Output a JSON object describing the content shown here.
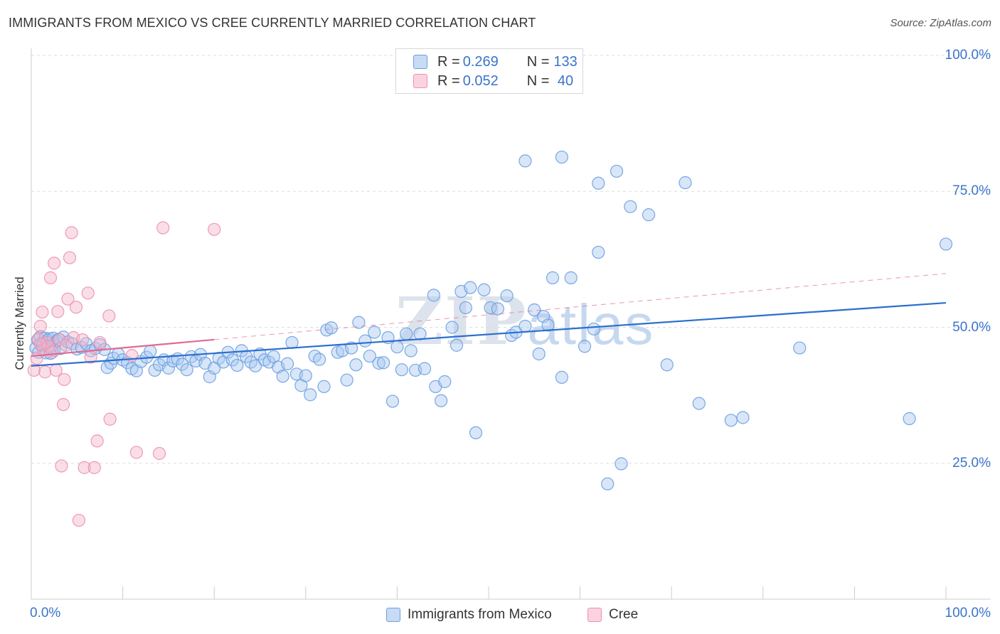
{
  "header": {
    "title": "IMMIGRANTS FROM MEXICO VS CREE CURRENTLY MARRIED CORRELATION CHART",
    "source": "Source: ZipAtlas.com"
  },
  "watermark": {
    "zip": "ZIP",
    "atlas": "atlas"
  },
  "legend_top": {
    "rows": [
      {
        "r_label": "R = ",
        "r_value": "0.269",
        "n_label": "N = ",
        "n_value": "133",
        "color": "#a9c8f0"
      },
      {
        "r_label": "R = ",
        "r_value": "0.052",
        "n_label": "N = ",
        "n_value": " 40",
        "color": "#f5b6c9"
      }
    ]
  },
  "legend_bottom": {
    "items": [
      {
        "label": "Immigrants from Mexico",
        "color": "#a9c8f0"
      },
      {
        "label": "Cree",
        "color": "#f5b6c9"
      }
    ]
  },
  "chart_data": {
    "type": "scatter",
    "title": "IMMIGRANTS FROM MEXICO VS CREE CURRENTLY MARRIED CORRELATION CHART",
    "xlabel": "",
    "ylabel": "Currently Married",
    "xlim": [
      0,
      100
    ],
    "ylim": [
      0,
      103
    ],
    "x_tick_labels": [
      "0.0%",
      "100.0%"
    ],
    "y_ticks": [
      25,
      50,
      75,
      100
    ],
    "y_tick_labels": [
      "25.0%",
      "50.0%",
      "75.0%",
      "100.0%"
    ],
    "grid": "horizontal dashed",
    "legend_position": "top-center",
    "series": [
      {
        "name": "Immigrants from Mexico",
        "color": "#6a9fe0",
        "fill": "#a9c8f0",
        "stats": {
          "R": 0.269,
          "N": 133
        },
        "trend": {
          "x": [
            0,
            100
          ],
          "y": [
            42.9,
            54.5
          ],
          "style": "solid",
          "color": "#2a6fcf"
        },
        "points": [
          [
            0.5,
            46.2
          ],
          [
            0.7,
            47.7
          ],
          [
            0.8,
            45.4
          ],
          [
            1.0,
            48.3
          ],
          [
            1.2,
            46.6
          ],
          [
            1.3,
            47.1
          ],
          [
            1.5,
            48.0
          ],
          [
            1.6,
            45.3
          ],
          [
            1.7,
            46.9
          ],
          [
            1.8,
            47.6
          ],
          [
            2.0,
            47.9
          ],
          [
            2.1,
            45.2
          ],
          [
            2.3,
            46.5
          ],
          [
            2.4,
            48.0
          ],
          [
            2.5,
            45.8
          ],
          [
            2.8,
            47.5
          ],
          [
            3.0,
            47.8
          ],
          [
            3.2,
            46.1
          ],
          [
            3.5,
            48.2
          ],
          [
            4.0,
            47.3
          ],
          [
            4.5,
            47.0
          ],
          [
            5.0,
            46.0
          ],
          [
            5.5,
            46.3
          ],
          [
            6.0,
            47.0
          ],
          [
            6.5,
            45.7
          ],
          [
            7.0,
            46.1
          ],
          [
            7.5,
            46.8
          ],
          [
            8.0,
            45.9
          ],
          [
            8.3,
            42.6
          ],
          [
            8.7,
            43.4
          ],
          [
            9.0,
            44.3
          ],
          [
            9.5,
            45.1
          ],
          [
            10.0,
            44.0
          ],
          [
            10.5,
            43.5
          ],
          [
            11.0,
            42.4
          ],
          [
            11.5,
            42.0
          ],
          [
            12.0,
            43.7
          ],
          [
            12.6,
            44.5
          ],
          [
            13.0,
            45.6
          ],
          [
            13.5,
            42.1
          ],
          [
            14.0,
            43.1
          ],
          [
            14.5,
            44.0
          ],
          [
            15.0,
            42.5
          ],
          [
            15.5,
            43.8
          ],
          [
            16.0,
            44.2
          ],
          [
            16.5,
            43.2
          ],
          [
            17.0,
            42.2
          ],
          [
            17.5,
            44.6
          ],
          [
            18.0,
            43.8
          ],
          [
            18.5,
            45.0
          ],
          [
            19.0,
            43.4
          ],
          [
            19.5,
            40.9
          ],
          [
            20.0,
            42.5
          ],
          [
            20.5,
            44.3
          ],
          [
            21.0,
            43.6
          ],
          [
            21.5,
            45.4
          ],
          [
            22.0,
            44.0
          ],
          [
            22.5,
            43.0
          ],
          [
            23.0,
            45.7
          ],
          [
            23.5,
            44.6
          ],
          [
            24.0,
            43.6
          ],
          [
            24.5,
            42.9
          ],
          [
            25.0,
            45.1
          ],
          [
            25.5,
            44.0
          ],
          [
            26.0,
            43.6
          ],
          [
            26.5,
            44.6
          ],
          [
            27.0,
            42.7
          ],
          [
            27.5,
            41.0
          ],
          [
            28.0,
            43.3
          ],
          [
            28.5,
            47.2
          ],
          [
            29.0,
            41.4
          ],
          [
            29.5,
            39.3
          ],
          [
            30.0,
            41.1
          ],
          [
            30.5,
            37.6
          ],
          [
            31.0,
            44.7
          ],
          [
            31.5,
            44.1
          ],
          [
            32.0,
            39.1
          ],
          [
            32.3,
            49.5
          ],
          [
            32.8,
            49.9
          ],
          [
            33.5,
            45.4
          ],
          [
            34.0,
            45.7
          ],
          [
            34.5,
            40.3
          ],
          [
            35.0,
            46.2
          ],
          [
            35.5,
            43.1
          ],
          [
            35.8,
            50.9
          ],
          [
            36.5,
            47.5
          ],
          [
            37.0,
            44.7
          ],
          [
            37.5,
            49.1
          ],
          [
            38.0,
            43.4
          ],
          [
            38.5,
            43.5
          ],
          [
            39.0,
            48.1
          ],
          [
            39.5,
            36.4
          ],
          [
            40.0,
            46.4
          ],
          [
            40.5,
            42.2
          ],
          [
            41.0,
            48.8
          ],
          [
            41.5,
            45.7
          ],
          [
            42.0,
            42.1
          ],
          [
            42.5,
            48.8
          ],
          [
            43.0,
            42.4
          ],
          [
            44.0,
            55.9
          ],
          [
            44.2,
            39.1
          ],
          [
            44.8,
            36.5
          ],
          [
            45.2,
            40.0
          ],
          [
            46.0,
            50.0
          ],
          [
            46.5,
            46.7
          ],
          [
            47.0,
            56.6
          ],
          [
            47.5,
            53.6
          ],
          [
            48.0,
            57.3
          ],
          [
            48.6,
            30.6
          ],
          [
            49.5,
            56.9
          ],
          [
            50.2,
            53.6
          ],
          [
            51.0,
            53.4
          ],
          [
            52.0,
            55.8
          ],
          [
            52.5,
            48.5
          ],
          [
            53.0,
            49.1
          ],
          [
            54.0,
            50.2
          ],
          [
            55.0,
            53.2
          ],
          [
            55.5,
            45.1
          ],
          [
            56.0,
            52.0
          ],
          [
            56.5,
            50.4
          ],
          [
            57.0,
            59.1
          ],
          [
            58.0,
            40.8
          ],
          [
            59.0,
            59.1
          ],
          [
            60.5,
            46.5
          ],
          [
            61.5,
            49.7
          ],
          [
            62.0,
            63.8
          ],
          [
            63.0,
            21.2
          ],
          [
            64.5,
            24.9
          ],
          [
            65.5,
            72.2
          ],
          [
            69.5,
            43.1
          ],
          [
            73.0,
            36.0
          ],
          [
            76.5,
            32.9
          ],
          [
            77.8,
            33.4
          ],
          [
            96.0,
            33.2
          ],
          [
            100.0,
            65.3
          ],
          [
            54.0,
            80.6
          ],
          [
            58.0,
            81.3
          ],
          [
            62.0,
            76.5
          ],
          [
            64.0,
            78.7
          ],
          [
            67.5,
            70.7
          ],
          [
            71.5,
            76.6
          ],
          [
            84.0,
            46.2
          ]
        ]
      },
      {
        "name": "Cree",
        "color": "#ee8fb0",
        "fill": "#f5b6c9",
        "stats": {
          "R": 0.052,
          "N": 40
        },
        "trend": {
          "x": [
            0,
            100
          ],
          "y": [
            44.7,
            59.9
          ],
          "solid_until_x": 20,
          "style": "solid-then-dashed",
          "color": "#e06a94"
        },
        "points": [
          [
            0.3,
            42.1
          ],
          [
            0.6,
            44.3
          ],
          [
            0.8,
            47.9
          ],
          [
            1.0,
            50.2
          ],
          [
            1.2,
            52.8
          ],
          [
            1.3,
            45.8
          ],
          [
            1.5,
            41.8
          ],
          [
            1.7,
            47.2
          ],
          [
            1.9,
            46.5
          ],
          [
            2.1,
            59.1
          ],
          [
            2.3,
            45.4
          ],
          [
            2.5,
            61.8
          ],
          [
            2.7,
            42.1
          ],
          [
            2.9,
            52.9
          ],
          [
            3.1,
            47.7
          ],
          [
            3.3,
            24.5
          ],
          [
            3.5,
            35.8
          ],
          [
            3.6,
            40.4
          ],
          [
            3.8,
            46.7
          ],
          [
            4.0,
            55.2
          ],
          [
            4.2,
            62.8
          ],
          [
            4.4,
            67.4
          ],
          [
            4.6,
            48.1
          ],
          [
            4.9,
            53.7
          ],
          [
            5.2,
            14.5
          ],
          [
            5.6,
            47.7
          ],
          [
            5.8,
            24.2
          ],
          [
            6.2,
            56.3
          ],
          [
            6.5,
            44.5
          ],
          [
            6.9,
            24.2
          ],
          [
            7.2,
            29.1
          ],
          [
            7.5,
            47.2
          ],
          [
            8.5,
            52.1
          ],
          [
            8.6,
            33.1
          ],
          [
            11.0,
            44.8
          ],
          [
            11.5,
            27.0
          ],
          [
            14.0,
            26.8
          ],
          [
            14.4,
            68.3
          ],
          [
            20.0,
            68.0
          ],
          [
            1.0,
            46.9
          ]
        ]
      }
    ]
  }
}
